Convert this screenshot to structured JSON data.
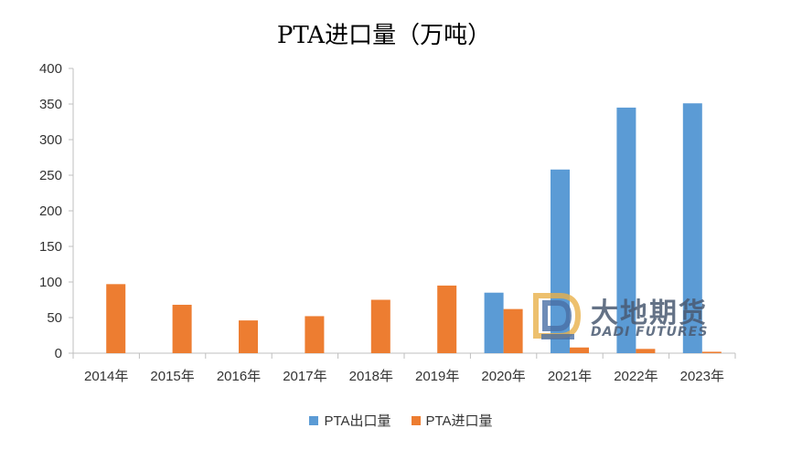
{
  "chart_data": {
    "type": "bar",
    "title": "PTA进口量（万吨）",
    "categories": [
      "2014年",
      "2015年",
      "2016年",
      "2017年",
      "2018年",
      "2019年",
      "2020年",
      "2021年",
      "2022年",
      "2023年"
    ],
    "series": [
      {
        "name": "PTA出口量",
        "color": "#5b9bd5",
        "values": [
          0,
          0,
          0,
          0,
          0,
          0,
          85,
          258,
          345,
          351
        ]
      },
      {
        "name": "PTA进口量",
        "color": "#ed7d31",
        "values": [
          97,
          68,
          46,
          52,
          75,
          95,
          62,
          8,
          6,
          2
        ]
      }
    ],
    "y_ticks": [
      "0",
      "50",
      "100",
      "150",
      "200",
      "250",
      "300",
      "350",
      "400"
    ],
    "ylim": [
      0,
      400
    ],
    "grid": false,
    "legend_position": "bottom"
  },
  "watermark": {
    "name_cn": "大地期货",
    "name_en": "DADI FUTURES"
  }
}
